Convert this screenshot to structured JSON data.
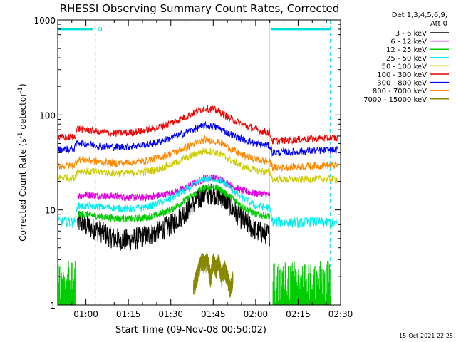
{
  "chart_data": {
    "type": "line",
    "title": "RHESSI Observing Summary Count Rates, Corrected",
    "ylabel_main": "Corrected Count Rate (s",
    "ylabel_sup1": "-1",
    "ylabel_mid": " detector",
    "ylabel_sup2": "-1",
    "ylabel_end": ")",
    "xlabel": "Start Time (09-Nov-08 00:50:02)",
    "timestamp": "15-Oct-2021 22:25",
    "legend_header": [
      "Det 1,3,4,5,6,9,",
      "Att 0"
    ],
    "x_start_minutes": 50.03,
    "x_end_minutes": 150,
    "xticks": [
      {
        "minutes": 60,
        "label": "01:00"
      },
      {
        "minutes": 75,
        "label": "01:15"
      },
      {
        "minutes": 90,
        "label": "01:30"
      },
      {
        "minutes": 105,
        "label": "01:45"
      },
      {
        "minutes": 120,
        "label": "02:00"
      },
      {
        "minutes": 135,
        "label": "02:15"
      },
      {
        "minutes": 150,
        "label": "02:30"
      }
    ],
    "yscale": "log",
    "ylim": [
      1,
      1000
    ],
    "yticks": [
      {
        "value": 1,
        "label": "1"
      },
      {
        "value": 10,
        "label": "10"
      },
      {
        "value": 100,
        "label": "100"
      },
      {
        "value": 1000,
        "label": "1000"
      }
    ],
    "night_markers": [
      {
        "minutes": 50.03,
        "style": "solid"
      },
      {
        "minutes": 63.3,
        "style": "dashed"
      },
      {
        "minutes": 124.8,
        "style": "solid"
      },
      {
        "minutes": 146.3,
        "style": "dashed"
      }
    ],
    "flag_bars": [
      {
        "from": 50.03,
        "to": 62.3,
        "value": 800
      },
      {
        "from": 125.3,
        "to": 146.3,
        "value": 800
      }
    ],
    "flag_label": "N",
    "flag_label_at": 64.3,
    "gap_steps": {
      "left": 56.3,
      "right": 125.8
    },
    "series": [
      {
        "name": "3 - 6 keV",
        "color": "#000000",
        "x": [
          57,
          60,
          65,
          70,
          75,
          80,
          85,
          90,
          95,
          100,
          102,
          105,
          108,
          110,
          115,
          120,
          125
        ],
        "y": [
          7.5,
          6.8,
          6.0,
          5.0,
          4.8,
          5.2,
          5.8,
          7.0,
          9.5,
          13.0,
          14.5,
          15.0,
          13.5,
          12.0,
          8.0,
          6.0,
          5.5
        ]
      },
      {
        "name": "6 - 12 keV",
        "color": "#e000e0",
        "x": [
          57,
          60,
          65,
          70,
          75,
          80,
          85,
          90,
          95,
          100,
          102,
          105,
          108,
          110,
          115,
          120,
          125
        ],
        "y": [
          14.0,
          14.5,
          14.0,
          14.0,
          13.5,
          13.5,
          14.0,
          15.0,
          17.0,
          20.0,
          21.5,
          22.0,
          20.5,
          19.0,
          16.0,
          15.0,
          14.5
        ]
      },
      {
        "name": "12 - 25 keV",
        "color": "#00cc00",
        "x": [
          57,
          60,
          65,
          70,
          75,
          80,
          85,
          90,
          95,
          100,
          102,
          105,
          108,
          110,
          115,
          120,
          125
        ],
        "y": [
          9.0,
          9.0,
          8.5,
          8.2,
          8.0,
          8.2,
          8.8,
          10.0,
          12.5,
          16.0,
          17.0,
          17.5,
          16.0,
          14.5,
          11.0,
          9.0,
          8.5
        ]
      },
      {
        "name": "25 - 50 keV",
        "color": "#00eeee",
        "x": [
          50.2,
          53,
          56,
          57,
          60,
          65,
          70,
          75,
          80,
          85,
          90,
          95,
          100,
          102,
          105,
          108,
          110,
          115,
          120,
          125,
          126,
          130,
          135,
          140,
          145,
          149
        ],
        "y": [
          7.5,
          7.6,
          7.4,
          11.0,
          11.0,
          10.8,
          10.5,
          10.2,
          10.5,
          11.5,
          13.0,
          16.0,
          20.0,
          21.0,
          21.5,
          20.0,
          18.0,
          13.5,
          11.0,
          10.5,
          7.5,
          7.4,
          7.3,
          7.5,
          7.4,
          7.3
        ]
      },
      {
        "name": "50 - 100 keV",
        "color": "#cccc00",
        "x": [
          50.2,
          53,
          56,
          57,
          60,
          65,
          70,
          75,
          80,
          85,
          90,
          95,
          100,
          102,
          105,
          108,
          110,
          115,
          120,
          125,
          126,
          130,
          135,
          140,
          145,
          149
        ],
        "y": [
          22.0,
          22.0,
          21.8,
          26.0,
          25.5,
          25.0,
          24.5,
          24.5,
          25.0,
          26.5,
          30.0,
          35.0,
          40.0,
          42.0,
          41.0,
          38.0,
          35.0,
          29.0,
          26.0,
          25.0,
          21.0,
          21.0,
          20.8,
          21.0,
          21.2,
          21.0
        ]
      },
      {
        "name": "100 - 300 keV",
        "color": "#ee0000",
        "x": [
          50.2,
          53,
          56,
          57,
          60,
          65,
          70,
          75,
          80,
          85,
          90,
          95,
          100,
          102,
          105,
          108,
          110,
          115,
          120,
          125,
          126,
          130,
          135,
          140,
          145,
          149
        ],
        "y": [
          58.0,
          58.0,
          59.0,
          72.0,
          70.0,
          66.0,
          64.0,
          65.0,
          68.0,
          73.0,
          82.0,
          95.0,
          112.0,
          118.0,
          115.0,
          105.0,
          95.0,
          80.0,
          70.0,
          65.0,
          53.0,
          54.0,
          55.0,
          56.0,
          57.0,
          57.0
        ]
      },
      {
        "name": "300 - 800 keV",
        "color": "#0000ee",
        "x": [
          50.2,
          53,
          56,
          57,
          60,
          65,
          70,
          75,
          80,
          85,
          90,
          95,
          100,
          102,
          105,
          108,
          110,
          115,
          120,
          125,
          126,
          130,
          135,
          140,
          145,
          149
        ],
        "y": [
          43.0,
          43.5,
          44.0,
          52.0,
          50.0,
          47.0,
          46.0,
          46.5,
          48.0,
          51.0,
          57.0,
          65.0,
          74.0,
          77.0,
          76.0,
          71.0,
          65.0,
          56.0,
          50.0,
          47.0,
          40.0,
          40.5,
          41.0,
          42.0,
          42.5,
          42.5
        ]
      },
      {
        "name": "800 - 7000 keV",
        "color": "#ff8800",
        "x": [
          50.2,
          53,
          56,
          57,
          60,
          65,
          70,
          75,
          80,
          85,
          90,
          95,
          100,
          102,
          105,
          108,
          110,
          115,
          120,
          125,
          126,
          130,
          135,
          140,
          145,
          149
        ],
        "y": [
          29.0,
          29.0,
          29.5,
          34.0,
          33.5,
          32.0,
          31.0,
          31.5,
          32.5,
          35.0,
          39.0,
          45.0,
          52.0,
          55.0,
          54.0,
          50.0,
          46.0,
          38.0,
          34.0,
          32.0,
          28.0,
          28.0,
          28.5,
          29.0,
          29.5,
          29.5
        ]
      },
      {
        "name": "7000 - 15000 keV",
        "color": "#888800",
        "x": [
          98,
          99,
          100,
          101,
          102,
          103,
          104,
          105,
          106,
          107,
          108,
          109,
          110,
          111,
          112
        ],
        "y": [
          1.5,
          2.0,
          2.5,
          3.0,
          2.8,
          3.0,
          2.0,
          3.0,
          2.5,
          3.0,
          2.0,
          2.5,
          2.0,
          1.5,
          2.0
        ]
      }
    ],
    "grid": false,
    "legend_position": "right"
  }
}
